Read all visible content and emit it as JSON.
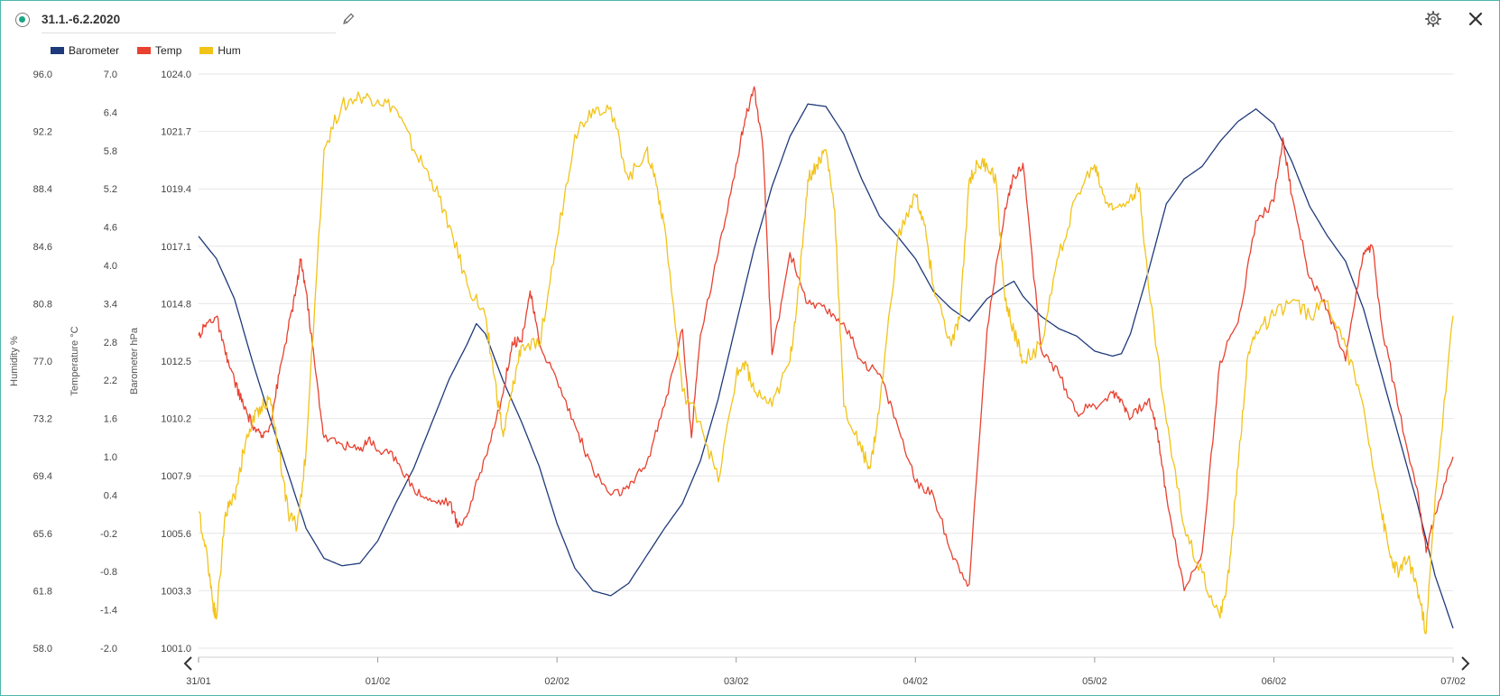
{
  "header": {
    "title": "31.1.-6.2.2020",
    "status_icon": "radio-selected-icon",
    "edit_icon": "pencil-icon",
    "settings_icon": "gear-icon",
    "close_icon": "close-icon"
  },
  "colors": {
    "barometer": "#1f3a7a",
    "temp": "#e8412f",
    "hum": "#f2c318",
    "accent": "#4db6ac"
  },
  "chart_data": {
    "type": "line",
    "x_ticks": [
      "31/01",
      "01/02",
      "02/02",
      "03/02",
      "04/02",
      "05/02",
      "06/02",
      "07/02"
    ],
    "xlim": [
      0,
      7
    ],
    "axes": [
      {
        "id": "hum",
        "title": "Humidity %",
        "ticks": [
          "96.0",
          "92.2",
          "88.4",
          "84.6",
          "80.8",
          "77.0",
          "73.2",
          "69.4",
          "65.6",
          "61.8",
          "58.0"
        ],
        "ylim": [
          58.0,
          96.0
        ]
      },
      {
        "id": "temp",
        "title": "Temperature °C",
        "ticks": [
          "7.0",
          "6.4",
          "5.8",
          "5.2",
          "4.6",
          "4.0",
          "3.4",
          "2.8",
          "2.2",
          "1.6",
          "1.0",
          "0.4",
          "-0.2",
          "-0.8",
          "-1.4",
          "-2.0"
        ],
        "ylim": [
          -2.0,
          7.0
        ]
      },
      {
        "id": "baro",
        "title": "Barometer hPa",
        "ticks": [
          "1024.0",
          "1021.7",
          "1019.4",
          "1017.1",
          "1014.8",
          "1012.5",
          "1010.2",
          "1007.9",
          "1005.6",
          "1003.3",
          "1001.0"
        ],
        "ylim": [
          1001.0,
          1024.0
        ]
      }
    ],
    "grid": true,
    "legend_position": "top-left",
    "series": [
      {
        "name": "Barometer",
        "axis": "baro",
        "color": "#1f3a7a",
        "points": [
          [
            0,
            1017.5
          ],
          [
            0.1,
            1016.6
          ],
          [
            0.2,
            1015
          ],
          [
            0.3,
            1012.5
          ],
          [
            0.4,
            1010.2
          ],
          [
            0.5,
            1008
          ],
          [
            0.6,
            1005.8
          ],
          [
            0.7,
            1004.6
          ],
          [
            0.8,
            1004.3
          ],
          [
            0.9,
            1004.4
          ],
          [
            1.0,
            1005.3
          ],
          [
            1.1,
            1006.8
          ],
          [
            1.2,
            1008.2
          ],
          [
            1.3,
            1010.0
          ],
          [
            1.4,
            1011.8
          ],
          [
            1.5,
            1013.2
          ],
          [
            1.55,
            1014.0
          ],
          [
            1.6,
            1013.6
          ],
          [
            1.7,
            1011.7
          ],
          [
            1.8,
            1010.1
          ],
          [
            1.9,
            1008.3
          ],
          [
            2.0,
            1006.0
          ],
          [
            2.1,
            1004.2
          ],
          [
            2.2,
            1003.3
          ],
          [
            2.3,
            1003.1
          ],
          [
            2.4,
            1003.6
          ],
          [
            2.5,
            1004.7
          ],
          [
            2.6,
            1005.8
          ],
          [
            2.7,
            1006.8
          ],
          [
            2.8,
            1008.5
          ],
          [
            2.9,
            1011.0
          ],
          [
            3.0,
            1014.0
          ],
          [
            3.1,
            1017.0
          ],
          [
            3.2,
            1019.5
          ],
          [
            3.3,
            1021.5
          ],
          [
            3.4,
            1022.8
          ],
          [
            3.5,
            1022.7
          ],
          [
            3.6,
            1021.6
          ],
          [
            3.7,
            1019.8
          ],
          [
            3.8,
            1018.3
          ],
          [
            3.9,
            1017.5
          ],
          [
            4.0,
            1016.6
          ],
          [
            4.1,
            1015.3
          ],
          [
            4.2,
            1014.6
          ],
          [
            4.3,
            1014.1
          ],
          [
            4.4,
            1015.0
          ],
          [
            4.5,
            1015.5
          ],
          [
            4.55,
            1015.7
          ],
          [
            4.6,
            1015.1
          ],
          [
            4.7,
            1014.3
          ],
          [
            4.8,
            1013.8
          ],
          [
            4.9,
            1013.5
          ],
          [
            5.0,
            1012.9
          ],
          [
            5.1,
            1012.7
          ],
          [
            5.15,
            1012.8
          ],
          [
            5.2,
            1013.6
          ],
          [
            5.3,
            1016.1
          ],
          [
            5.4,
            1018.8
          ],
          [
            5.5,
            1019.8
          ],
          [
            5.6,
            1020.3
          ],
          [
            5.7,
            1021.3
          ],
          [
            5.8,
            1022.1
          ],
          [
            5.9,
            1022.6
          ],
          [
            6.0,
            1022.0
          ],
          [
            6.1,
            1020.5
          ],
          [
            6.2,
            1018.7
          ],
          [
            6.3,
            1017.5
          ],
          [
            6.4,
            1016.5
          ],
          [
            6.5,
            1014.6
          ],
          [
            6.6,
            1012.0
          ],
          [
            6.7,
            1009.4
          ],
          [
            6.8,
            1006.8
          ],
          [
            6.9,
            1003.9
          ],
          [
            7.0,
            1001.8
          ]
        ]
      },
      {
        "name": "Temp",
        "axis": "temp",
        "color": "#e8412f",
        "points": [
          [
            0,
            2.9
          ],
          [
            0.05,
            3.1
          ],
          [
            0.1,
            3.2
          ],
          [
            0.15,
            2.6
          ],
          [
            0.2,
            2.2
          ],
          [
            0.25,
            1.8
          ],
          [
            0.3,
            1.5
          ],
          [
            0.35,
            1.3
          ],
          [
            0.4,
            1.5
          ],
          [
            0.45,
            2.3
          ],
          [
            0.5,
            3.0
          ],
          [
            0.55,
            3.7
          ],
          [
            0.57,
            4.1
          ],
          [
            0.6,
            3.6
          ],
          [
            0.65,
            2.4
          ],
          [
            0.7,
            1.3
          ],
          [
            0.8,
            1.2
          ],
          [
            0.9,
            1.1
          ],
          [
            0.95,
            1.3
          ],
          [
            1.0,
            1.1
          ],
          [
            1.1,
            1.0
          ],
          [
            1.2,
            0.5
          ],
          [
            1.3,
            0.3
          ],
          [
            1.4,
            0.3
          ],
          [
            1.45,
            -0.1
          ],
          [
            1.5,
            0.1
          ],
          [
            1.6,
            1.0
          ],
          [
            1.7,
            2.0
          ],
          [
            1.75,
            2.8
          ],
          [
            1.8,
            2.8
          ],
          [
            1.85,
            3.6
          ],
          [
            1.9,
            2.8
          ],
          [
            2.0,
            2.2
          ],
          [
            2.1,
            1.5
          ],
          [
            2.2,
            0.8
          ],
          [
            2.3,
            0.4
          ],
          [
            2.4,
            0.5
          ],
          [
            2.5,
            0.9
          ],
          [
            2.6,
            1.8
          ],
          [
            2.7,
            3.0
          ],
          [
            2.75,
            1.3
          ],
          [
            2.8,
            2.9
          ],
          [
            2.9,
            4.2
          ],
          [
            3.0,
            5.6
          ],
          [
            3.05,
            6.3
          ],
          [
            3.1,
            6.8
          ],
          [
            3.15,
            5.8
          ],
          [
            3.2,
            2.6
          ],
          [
            3.3,
            4.2
          ],
          [
            3.4,
            3.4
          ],
          [
            3.5,
            3.3
          ],
          [
            3.6,
            3.1
          ],
          [
            3.7,
            2.5
          ],
          [
            3.8,
            2.3
          ],
          [
            3.9,
            1.5
          ],
          [
            4.0,
            0.6
          ],
          [
            4.1,
            0.4
          ],
          [
            4.2,
            -0.5
          ],
          [
            4.3,
            -1.0
          ],
          [
            4.4,
            3.0
          ],
          [
            4.5,
            4.9
          ],
          [
            4.55,
            5.4
          ],
          [
            4.6,
            5.6
          ],
          [
            4.7,
            2.7
          ],
          [
            4.8,
            2.3
          ],
          [
            4.9,
            1.7
          ],
          [
            5.0,
            1.8
          ],
          [
            5.1,
            2.0
          ],
          [
            5.15,
            1.9
          ],
          [
            5.2,
            1.6
          ],
          [
            5.3,
            1.9
          ],
          [
            5.35,
            1.4
          ],
          [
            5.4,
            0.4
          ],
          [
            5.5,
            -1.1
          ],
          [
            5.6,
            -0.5
          ],
          [
            5.7,
            2.5
          ],
          [
            5.8,
            3.1
          ],
          [
            5.9,
            4.7
          ],
          [
            6.0,
            5.0
          ],
          [
            6.05,
            6.0
          ],
          [
            6.1,
            5.1
          ],
          [
            6.2,
            3.8
          ],
          [
            6.3,
            3.3
          ],
          [
            6.4,
            2.5
          ],
          [
            6.5,
            4.2
          ],
          [
            6.55,
            4.3
          ],
          [
            6.6,
            3.1
          ],
          [
            6.7,
            1.7
          ],
          [
            6.8,
            0.5
          ],
          [
            6.85,
            -0.5
          ],
          [
            6.9,
            0.1
          ],
          [
            7.0,
            1.0
          ]
        ]
      },
      {
        "name": "Hum",
        "axis": "hum",
        "color": "#f2c318",
        "points": [
          [
            0,
            67
          ],
          [
            0.05,
            64
          ],
          [
            0.08,
            61
          ],
          [
            0.1,
            60
          ],
          [
            0.15,
            67
          ],
          [
            0.2,
            68
          ],
          [
            0.25,
            71
          ],
          [
            0.3,
            73
          ],
          [
            0.35,
            74
          ],
          [
            0.4,
            74.5
          ],
          [
            0.45,
            71
          ],
          [
            0.5,
            67
          ],
          [
            0.55,
            66
          ],
          [
            0.6,
            71
          ],
          [
            0.7,
            91
          ],
          [
            0.8,
            94
          ],
          [
            0.9,
            94.5
          ],
          [
            1.0,
            94.3
          ],
          [
            1.1,
            93.7
          ],
          [
            1.2,
            91
          ],
          [
            1.3,
            89
          ],
          [
            1.4,
            86
          ],
          [
            1.5,
            82
          ],
          [
            1.6,
            80
          ],
          [
            1.65,
            76
          ],
          [
            1.7,
            72
          ],
          [
            1.75,
            75
          ],
          [
            1.8,
            78
          ],
          [
            1.9,
            78
          ],
          [
            2.0,
            85
          ],
          [
            2.1,
            92
          ],
          [
            2.2,
            93.7
          ],
          [
            2.3,
            93.8
          ],
          [
            2.4,
            89
          ],
          [
            2.5,
            91
          ],
          [
            2.55,
            89
          ],
          [
            2.6,
            86
          ],
          [
            2.7,
            75
          ],
          [
            2.8,
            73
          ],
          [
            2.9,
            69
          ],
          [
            3.0,
            76
          ],
          [
            3.05,
            77
          ],
          [
            3.1,
            75
          ],
          [
            3.2,
            74
          ],
          [
            3.3,
            77
          ],
          [
            3.35,
            82
          ],
          [
            3.4,
            89
          ],
          [
            3.45,
            90
          ],
          [
            3.5,
            91
          ],
          [
            3.55,
            87
          ],
          [
            3.6,
            74
          ],
          [
            3.7,
            71
          ],
          [
            3.75,
            70
          ],
          [
            3.8,
            74
          ],
          [
            3.9,
            85
          ],
          [
            4.0,
            88
          ],
          [
            4.05,
            86
          ],
          [
            4.1,
            82
          ],
          [
            4.2,
            78
          ],
          [
            4.25,
            80
          ],
          [
            4.3,
            89
          ],
          [
            4.35,
            90
          ],
          [
            4.4,
            90
          ],
          [
            4.45,
            89
          ],
          [
            4.5,
            81
          ],
          [
            4.55,
            79
          ],
          [
            4.6,
            77
          ],
          [
            4.7,
            78
          ],
          [
            4.8,
            84
          ],
          [
            4.9,
            88
          ],
          [
            5.0,
            90
          ],
          [
            5.05,
            88
          ],
          [
            5.1,
            87
          ],
          [
            5.2,
            88
          ],
          [
            5.25,
            88.5
          ],
          [
            5.3,
            82
          ],
          [
            5.4,
            73
          ],
          [
            5.5,
            66
          ],
          [
            5.6,
            63
          ],
          [
            5.7,
            60
          ],
          [
            5.75,
            63
          ],
          [
            5.8,
            70
          ],
          [
            5.85,
            77
          ],
          [
            5.9,
            79
          ],
          [
            6.0,
            80
          ],
          [
            6.1,
            81
          ],
          [
            6.2,
            80
          ],
          [
            6.3,
            81
          ],
          [
            6.4,
            78
          ],
          [
            6.5,
            74
          ],
          [
            6.6,
            67
          ],
          [
            6.65,
            64
          ],
          [
            6.7,
            63
          ],
          [
            6.75,
            64
          ],
          [
            6.8,
            62
          ],
          [
            6.85,
            59
          ],
          [
            6.9,
            68
          ],
          [
            7.0,
            80
          ]
        ]
      }
    ]
  }
}
